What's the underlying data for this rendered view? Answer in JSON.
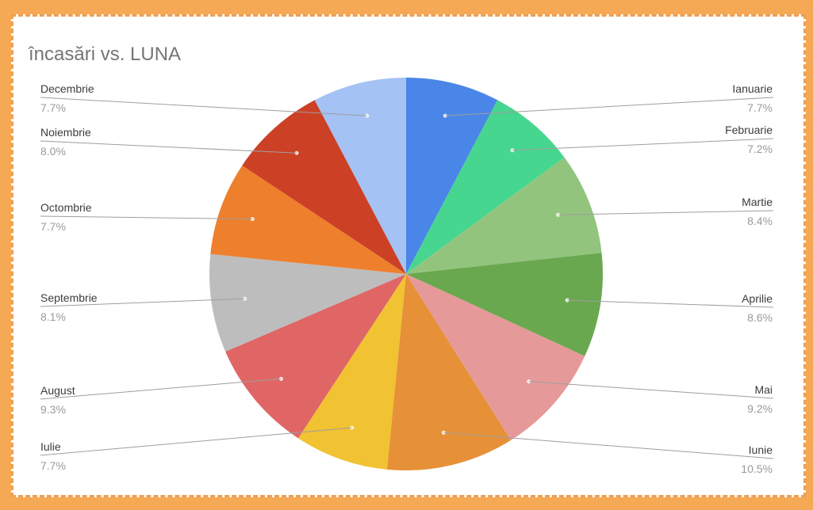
{
  "chart_data": {
    "type": "pie",
    "title": "încasări vs. LUNA",
    "slices": [
      {
        "label": "Ianuarie",
        "value": 7.7,
        "display": "7.7%",
        "color": "#4a86e8",
        "side": "right"
      },
      {
        "label": "Februarie",
        "value": 7.2,
        "display": "7.2%",
        "color": "#47d68f",
        "side": "right"
      },
      {
        "label": "Martie",
        "value": 8.4,
        "display": "8.4%",
        "color": "#93c47d",
        "side": "right"
      },
      {
        "label": "Aprilie",
        "value": 8.6,
        "display": "8.6%",
        "color": "#6aa84f",
        "side": "right"
      },
      {
        "label": "Mai",
        "value": 9.2,
        "display": "9.2%",
        "color": "#e69999",
        "side": "right"
      },
      {
        "label": "Iunie",
        "value": 10.5,
        "display": "10.5%",
        "color": "#e69138",
        "side": "right"
      },
      {
        "label": "Iulie",
        "value": 7.7,
        "display": "7.7%",
        "color": "#f1c232",
        "side": "left"
      },
      {
        "label": "August",
        "value": 9.3,
        "display": "9.3%",
        "color": "#e06666",
        "side": "left"
      },
      {
        "label": "Septembrie",
        "value": 8.1,
        "display": "8.1%",
        "color": "#bdbdbd",
        "side": "left"
      },
      {
        "label": "Octombrie",
        "value": 7.7,
        "display": "7.7%",
        "color": "#ee7f2d",
        "side": "left"
      },
      {
        "label": "Noiembrie",
        "value": 8.0,
        "display": "8.0%",
        "color": "#cc4125",
        "side": "left"
      },
      {
        "label": "Decembrie",
        "value": 7.7,
        "display": "7.7%",
        "color": "#a4c2f4",
        "side": "left"
      }
    ],
    "legend": "callout labels on both sides"
  }
}
